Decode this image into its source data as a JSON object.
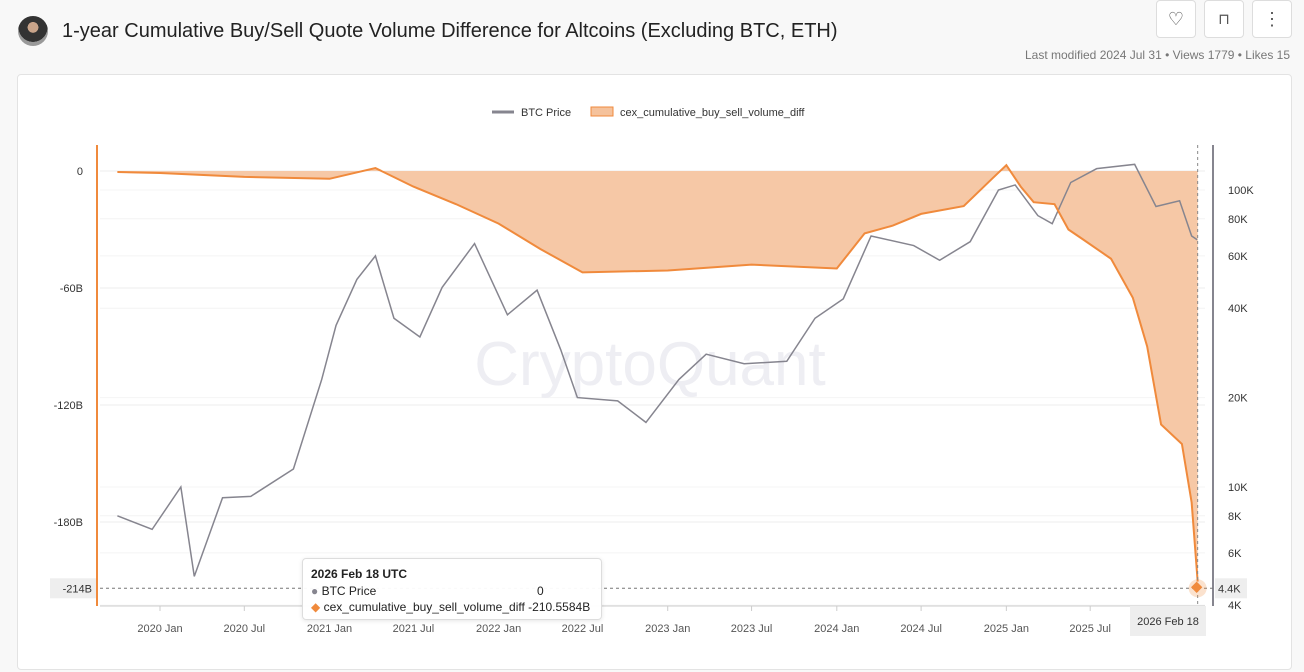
{
  "header": {
    "title": "1-year Cumulative Buy/Sell Quote Volume Difference for Altcoins (Excluding BTC, ETH)",
    "meta": "Last modified 2024 Jul 31 • Views 1779 • Likes 15"
  },
  "actions": {
    "like": "like-icon",
    "bookmark": "bookmark-add-icon",
    "more": "more-vertical-icon"
  },
  "watermark": "CryptoQuant",
  "tooltip": {
    "date": "2026 Feb 18 UTC",
    "rows": [
      {
        "name": "BTC Price",
        "value": "0"
      },
      {
        "name": "cex_cumulative_buy_sell_volume_diff",
        "value": "-210.5584B"
      }
    ]
  },
  "crosshair": {
    "x_label": "2026 Feb 18",
    "y_left_label": "-214B",
    "y_right_label": "4.4K"
  },
  "chart_data": {
    "type": "line",
    "legend": [
      "BTC Price",
      "cex_cumulative_buy_sell_volume_diff"
    ],
    "legend_position": "top",
    "colors": {
      "BTC Price": "#86858f",
      "cex_cumulative_buy_sell_volume_diff": "#f08a3c",
      "fill": "#f5c29c"
    },
    "x_ticks": [
      "2020 Jan",
      "2020 Jul",
      "2021 Jan",
      "2021 Jul",
      "2022 Jan",
      "2022 Jul",
      "2023 Jan",
      "2023 Jul",
      "2024 Jan",
      "2024 Jul",
      "2025 Jan",
      "2025 Jul"
    ],
    "y_left": {
      "ticks": [
        "0",
        "-60B",
        "-120B",
        "-180B"
      ],
      "range_billion": [
        12,
        -222
      ]
    },
    "y_right": {
      "scale": "log",
      "ticks": [
        "100K",
        "80K",
        "60K",
        "40K",
        "20K",
        "10K",
        "8K",
        "6K",
        "4K"
      ]
    },
    "series": [
      {
        "name": "cex_cumulative_buy_sell_volume_diff",
        "unit": "B",
        "points": [
          [
            "2019-10-01",
            -0.5
          ],
          [
            "2020-01-01",
            -1
          ],
          [
            "2020-07-01",
            -3
          ],
          [
            "2021-01-01",
            -4
          ],
          [
            "2021-04-10",
            1.5
          ],
          [
            "2021-07-01",
            -8
          ],
          [
            "2021-10-01",
            -17
          ],
          [
            "2022-01-01",
            -27
          ],
          [
            "2022-04-01",
            -40
          ],
          [
            "2022-07-01",
            -52
          ],
          [
            "2023-01-01",
            -51
          ],
          [
            "2023-07-01",
            -48
          ],
          [
            "2024-01-01",
            -50
          ],
          [
            "2024-03-01",
            -32
          ],
          [
            "2024-05-01",
            -28
          ],
          [
            "2024-07-01",
            -22
          ],
          [
            "2024-10-01",
            -18
          ],
          [
            "2024-12-01",
            -4
          ],
          [
            "2025-01-01",
            3
          ],
          [
            "2025-02-01",
            -8
          ],
          [
            "2025-03-01",
            -16
          ],
          [
            "2025-04-15",
            -17
          ],
          [
            "2025-05-15",
            -30
          ],
          [
            "2025-06-15",
            -35
          ],
          [
            "2025-08-15",
            -45
          ],
          [
            "2025-10-01",
            -65
          ],
          [
            "2025-11-01",
            -90
          ],
          [
            "2025-12-01",
            -130
          ],
          [
            "2026-01-15",
            -140
          ],
          [
            "2026-02-05",
            -170
          ],
          [
            "2026-02-18",
            -210.5584
          ]
        ]
      },
      {
        "name": "BTC Price",
        "unit": "USD",
        "points": [
          [
            "2019-10-01",
            8000
          ],
          [
            "2019-12-15",
            7200
          ],
          [
            "2020-02-15",
            10000
          ],
          [
            "2020-03-15",
            5000
          ],
          [
            "2020-05-15",
            9200
          ],
          [
            "2020-07-15",
            9300
          ],
          [
            "2020-10-15",
            11500
          ],
          [
            "2020-12-15",
            23000
          ],
          [
            "2021-01-15",
            35000
          ],
          [
            "2021-03-01",
            50000
          ],
          [
            "2021-04-10",
            60000
          ],
          [
            "2021-05-20",
            37000
          ],
          [
            "2021-07-15",
            32000
          ],
          [
            "2021-09-01",
            47000
          ],
          [
            "2021-11-10",
            66000
          ],
          [
            "2022-01-20",
            38000
          ],
          [
            "2022-03-25",
            46000
          ],
          [
            "2022-05-15",
            29000
          ],
          [
            "2022-06-20",
            20000
          ],
          [
            "2022-09-15",
            19500
          ],
          [
            "2022-11-15",
            16500
          ],
          [
            "2023-01-25",
            23000
          ],
          [
            "2023-03-25",
            28000
          ],
          [
            "2023-06-15",
            26000
          ],
          [
            "2023-09-15",
            26500
          ],
          [
            "2023-11-15",
            37000
          ],
          [
            "2024-01-15",
            43000
          ],
          [
            "2024-03-15",
            70000
          ],
          [
            "2024-06-15",
            65000
          ],
          [
            "2024-08-10",
            58000
          ],
          [
            "2024-10-15",
            67000
          ],
          [
            "2024-12-15",
            100000
          ],
          [
            "2025-01-20",
            104000
          ],
          [
            "2025-03-10",
            82000
          ],
          [
            "2025-04-10",
            77000
          ],
          [
            "2025-05-20",
            106000
          ],
          [
            "2025-07-15",
            118000
          ],
          [
            "2025-10-05",
            122000
          ],
          [
            "2025-11-20",
            88000
          ],
          [
            "2026-01-10",
            92000
          ],
          [
            "2026-02-05",
            70000
          ],
          [
            "2026-02-17",
            68000
          ]
        ]
      }
    ]
  }
}
